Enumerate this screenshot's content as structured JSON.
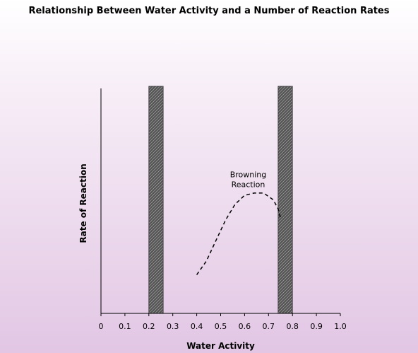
{
  "chart_data": {
    "type": "line",
    "title": "Relationship Between Water Activity and a Number of  Reaction Rates",
    "x_label": "Water Activity",
    "y_label": "Rate of Reaction",
    "xlim": [
      0,
      1.0
    ],
    "xticks": [
      0,
      0.1,
      0.2,
      0.3,
      0.4,
      0.5,
      0.6,
      0.7,
      0.8,
      0.9,
      {
        "value": 1.0,
        "label": "1.0"
      }
    ],
    "ylim": [
      0,
      1
    ],
    "bands": [
      [
        0.2,
        0.26
      ],
      [
        0.74,
        0.8
      ]
    ],
    "band_color": "#555555",
    "series": [
      {
        "name": "Browning Reaction",
        "color": "#000000",
        "dashed": true,
        "x": [
          0.4,
          0.44,
          0.48,
          0.52,
          0.56,
          0.6,
          0.64,
          0.68,
          0.72,
          0.74,
          0.75
        ],
        "values": [
          0.17,
          0.23,
          0.32,
          0.41,
          0.48,
          0.52,
          0.53,
          0.53,
          0.5,
          0.46,
          0.42
        ]
      }
    ],
    "annotation": {
      "lines": [
        "Browning",
        "Reaction"
      ],
      "x": 0.615,
      "y": 0.6
    }
  }
}
